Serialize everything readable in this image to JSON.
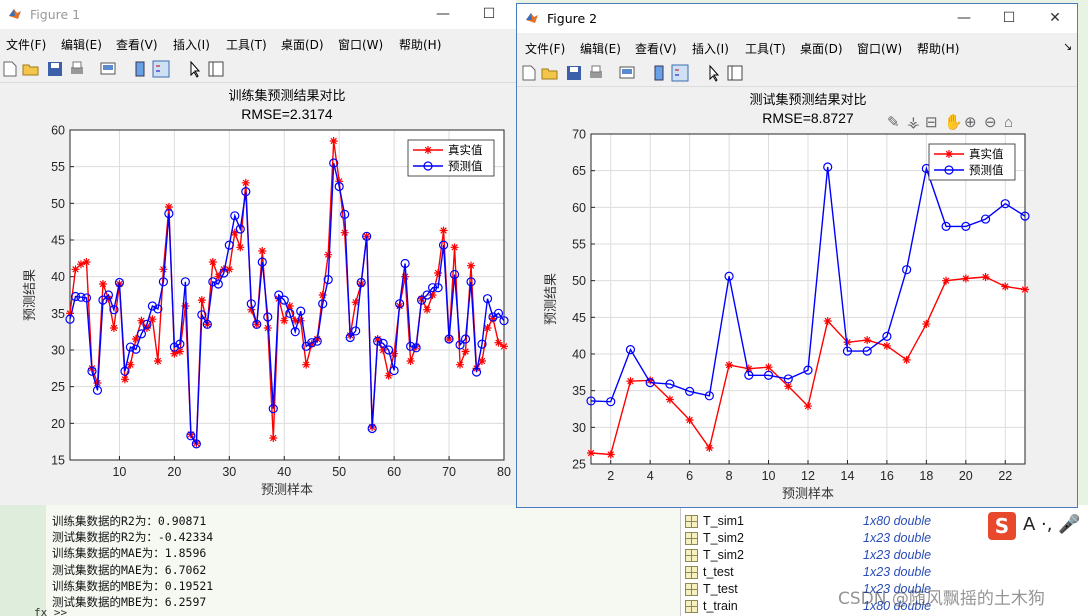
{
  "figure1": {
    "window_title": "Figure 1",
    "menu": [
      "文件(F)",
      "编辑(E)",
      "查看(V)",
      "插入(I)",
      "工具(T)",
      "桌面(D)",
      "窗口(W)",
      "帮助(H)"
    ],
    "chart_data": {
      "type": "line",
      "title": "训练集预测结果对比",
      "subtitle": "RMSE=2.3174",
      "xlabel": "预测样本",
      "ylabel": "预测结果",
      "xlim": [
        1,
        80
      ],
      "ylim": [
        15,
        60
      ],
      "xticks": [
        10,
        20,
        30,
        40,
        50,
        60,
        70,
        80
      ],
      "yticks": [
        15,
        20,
        25,
        30,
        35,
        40,
        45,
        50,
        55,
        60
      ],
      "grid": true,
      "legend_position": "top-right",
      "x": [
        1,
        2,
        3,
        4,
        5,
        6,
        7,
        8,
        9,
        10,
        11,
        12,
        13,
        14,
        15,
        16,
        17,
        18,
        19,
        20,
        21,
        22,
        23,
        24,
        25,
        26,
        27,
        28,
        29,
        30,
        31,
        32,
        33,
        34,
        35,
        36,
        37,
        38,
        39,
        40,
        41,
        42,
        43,
        44,
        45,
        46,
        47,
        48,
        49,
        50,
        51,
        52,
        53,
        54,
        55,
        56,
        57,
        58,
        59,
        60,
        61,
        62,
        63,
        64,
        65,
        66,
        67,
        68,
        69,
        70,
        71,
        72,
        73,
        74,
        75,
        76,
        77,
        78,
        79,
        80
      ],
      "series": [
        {
          "name": "真实值",
          "color": "#ff0000",
          "marker": "*",
          "values": [
            35,
            41,
            41.7,
            42,
            27.5,
            25.5,
            39,
            37,
            33,
            39,
            26,
            28,
            31.5,
            34,
            33,
            34.2,
            28.5,
            41,
            49.5,
            29.5,
            29.8,
            36,
            18.5,
            17.3,
            36.8,
            33.5,
            42,
            40,
            41,
            41,
            46,
            44,
            52.8,
            35.5,
            33.5,
            43.5,
            33,
            18,
            37,
            34,
            36,
            34,
            34,
            28,
            30.8,
            31.5,
            37.5,
            43,
            58.5,
            53,
            46,
            32,
            36.5,
            39,
            45.5,
            19.5,
            31.5,
            30,
            26.5,
            29.5,
            36,
            40,
            28.5,
            30.5,
            37,
            35.5,
            37.5,
            40.5,
            46.3,
            31.5,
            44,
            28,
            29.8,
            41.5,
            27.5,
            28.5,
            33,
            34.3,
            31,
            30.5
          ]
        },
        {
          "name": "预测值",
          "color": "#0000ff",
          "marker": "o",
          "values": [
            34.2,
            37.3,
            37.2,
            37.1,
            27.1,
            24.5,
            36.8,
            37.5,
            35.5,
            39.2,
            27.1,
            30.4,
            30.1,
            32.2,
            33.5,
            36,
            35.6,
            39.3,
            48.6,
            30.4,
            30.8,
            39.3,
            18.3,
            17.2,
            34.8,
            33.5,
            39.3,
            39,
            40.5,
            44.3,
            48.3,
            46.5,
            51.6,
            36.3,
            33.5,
            42,
            34.5,
            22,
            37.5,
            36.8,
            35,
            32.5,
            35.3,
            30.5,
            31,
            31.2,
            36.3,
            39.6,
            55.5,
            52.3,
            48.5,
            31.7,
            32.6,
            39.2,
            45.5,
            19.3,
            31.2,
            30.9,
            30,
            27.2,
            36.3,
            41.8,
            30.5,
            30.3,
            36.8,
            37.5,
            38.5,
            38.5,
            44.3,
            31.5,
            40.3,
            30.7,
            31.5,
            39.3,
            27,
            30.8,
            37,
            34.5,
            35,
            34
          ]
        }
      ]
    }
  },
  "figure2": {
    "window_title": "Figure 2",
    "menu": [
      "文件(F)",
      "编辑(E)",
      "查看(V)",
      "插入(I)",
      "工具(T)",
      "桌面(D)",
      "窗口(W)",
      "帮助(H)"
    ],
    "chart_data": {
      "type": "line",
      "title": "测试集预测结果对比",
      "subtitle": "RMSE=8.8727",
      "xlabel": "预测样本",
      "ylabel": "预测结果",
      "xlim": [
        1,
        23
      ],
      "ylim": [
        25,
        70
      ],
      "xticks": [
        2,
        4,
        6,
        8,
        10,
        12,
        14,
        16,
        18,
        20,
        22
      ],
      "yticks": [
        25,
        30,
        35,
        40,
        45,
        50,
        55,
        60,
        65,
        70
      ],
      "grid": true,
      "legend_position": "top-right",
      "x": [
        1,
        2,
        3,
        4,
        5,
        6,
        7,
        8,
        9,
        10,
        11,
        12,
        13,
        14,
        15,
        16,
        17,
        18,
        19,
        20,
        21,
        22,
        23
      ],
      "series": [
        {
          "name": "真实值",
          "color": "#ff0000",
          "marker": "*",
          "values": [
            26.5,
            26.3,
            36.3,
            36.4,
            33.8,
            31,
            27.2,
            38.5,
            38,
            38.2,
            35.6,
            32.9,
            44.5,
            41.6,
            41.9,
            41.1,
            39.2,
            44.1,
            50,
            50.3,
            50.5,
            49.2,
            48.8
          ]
        },
        {
          "name": "预测值",
          "color": "#0000ff",
          "marker": "o",
          "values": [
            33.6,
            33.5,
            40.6,
            36.1,
            35.9,
            34.9,
            34.3,
            50.6,
            37.1,
            37.1,
            36.6,
            37.8,
            65.5,
            40.4,
            40.4,
            42.4,
            51.5,
            65.3,
            57.4,
            57.4,
            58.4,
            60.5,
            58.8
          ]
        }
      ]
    }
  },
  "command_window": {
    "lines": [
      "训练集数据的R2为：0.90871",
      "测试集数据的R2为：-0.42334",
      "训练集数据的MAE为：1.8596",
      "测试集数据的MAE为：6.7062",
      "训练集数据的MBE为：0.19521",
      "测试集数据的MBE为：6.2597"
    ],
    "prompt": "fx >>"
  },
  "workspace": {
    "rows": [
      {
        "name": "T_sim1",
        "value": "1x80 double"
      },
      {
        "name": "T_sim2",
        "value": "1x23 double"
      },
      {
        "name": "T_sim2",
        "value": "1x23 double"
      },
      {
        "name": "t_test",
        "value": "1x23 double"
      },
      {
        "name": "T_test",
        "value": "1x23 double"
      },
      {
        "name": "t_train",
        "value": "1x80 double"
      }
    ]
  },
  "watermark": "CSDN @随风飘摇的土木狗",
  "ime": {
    "logo": "S",
    "indicator": "A ·, 🎤"
  }
}
